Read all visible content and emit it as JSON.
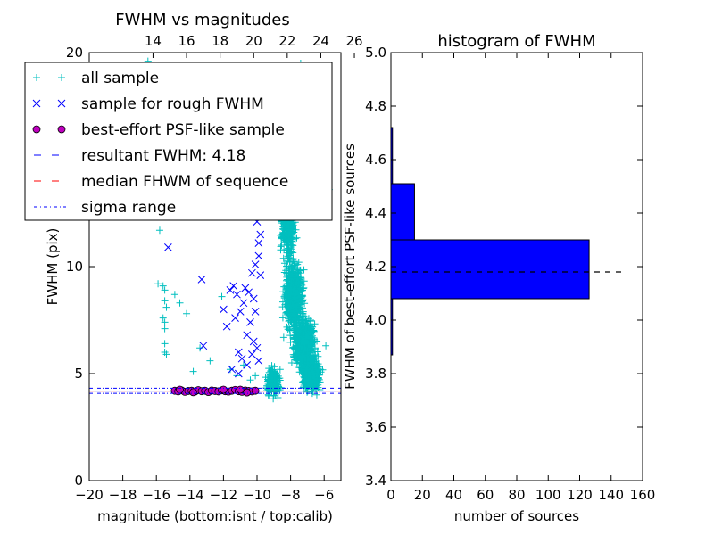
{
  "chart_data": [
    {
      "type": "scatter",
      "title": "FWHM vs magnitudes",
      "xlabel": "magnitude (bottom:isnt / top:calib)",
      "ylabel": "FWHM (pix)",
      "xlim": [
        -20,
        -5
      ],
      "ylim": [
        0,
        20
      ],
      "xticks": [
        -20,
        -18,
        -16,
        -14,
        -12,
        -10,
        -8,
        -6
      ],
      "xtick_labels": [
        "−20",
        "−18",
        "−16",
        "−14",
        "−12",
        "−10",
        "−8",
        "−6"
      ],
      "yticks": [
        0,
        5,
        10,
        15,
        20
      ],
      "ytick_labels": [
        "0",
        "5",
        "10",
        "15",
        "20"
      ],
      "top_axis": {
        "ticks": [
          14,
          16,
          18,
          20,
          22,
          24,
          26
        ],
        "labels": [
          "14",
          "16",
          "18",
          "20",
          "22",
          "24",
          "26"
        ],
        "offset": 30.2
      },
      "legend": {
        "placement": "upper-left",
        "entries": [
          {
            "label": "all sample",
            "marker": "+",
            "color": "#00bfbf"
          },
          {
            "label": "sample for rough FWHM",
            "marker": "x",
            "color": "#0000ff"
          },
          {
            "label": "best-effort PSF-like sample",
            "marker": "o",
            "color": "#bf00bf"
          },
          {
            "label": "resultant FWHM: 4.18",
            "line": "dashed",
            "color": "#0000ff"
          },
          {
            "label": "median FHWM of sequence",
            "line": "dashed",
            "color": "#ff0000"
          },
          {
            "label": "sigma range",
            "line": "dashdot",
            "color": "#0000ff"
          }
        ]
      },
      "reference_lines": {
        "resultant_fwhm": 4.18,
        "median_fwhm": 4.18,
        "sigma_range": [
          4.08,
          4.32
        ]
      },
      "series": [
        {
          "name": "all sample",
          "marker": "+",
          "color": "#00bfbf",
          "points": [
            [
              -16.5,
              19.6
            ],
            [
              -15.6,
              13.0
            ],
            [
              -15.8,
              11.7
            ],
            [
              -15.2,
              12.5
            ],
            [
              -15.9,
              9.2
            ],
            [
              -15.5,
              8.9
            ],
            [
              -15.6,
              9.1
            ],
            [
              -15.5,
              8.4
            ],
            [
              -15.4,
              8.1
            ],
            [
              -15.6,
              7.6
            ],
            [
              -15.5,
              7.4
            ],
            [
              -15.5,
              7.1
            ],
            [
              -15.5,
              6.4
            ],
            [
              -15.5,
              6.0
            ],
            [
              -15.4,
              5.9
            ],
            [
              -14.9,
              8.7
            ],
            [
              -14.6,
              8.3
            ],
            [
              -14.2,
              7.8
            ],
            [
              -13.4,
              6.2
            ],
            [
              -13.8,
              5.1
            ],
            [
              -12.8,
              5.6
            ],
            [
              -12.1,
              8.6
            ],
            [
              -11.6,
              5.2
            ],
            [
              -11.2,
              4.9
            ],
            [
              -10.8,
              5.4
            ],
            [
              -10.4,
              4.7
            ],
            [
              -10.1,
              4.9
            ],
            [
              -8.4,
              17.2
            ],
            [
              -7.4,
              19.5
            ],
            [
              -7.2,
              19.1
            ],
            [
              -6.6,
              19.2
            ],
            [
              -6.4,
              17.6
            ],
            [
              -5.8,
              16.4
            ],
            [
              -5.7,
              13.6
            ],
            [
              -5.9,
              6.3
            ]
          ],
          "clouds": [
            {
              "x_center": -8.2,
              "x_spread": 0.45,
              "y_center": 12.4,
              "y_spread": 2.1,
              "count": 420
            },
            {
              "x_center": -7.8,
              "x_spread": 0.55,
              "y_center": 8.6,
              "y_spread": 1.4,
              "count": 620
            },
            {
              "x_center": -7.2,
              "x_spread": 0.6,
              "y_center": 6.4,
              "y_spread": 1.0,
              "count": 640
            },
            {
              "x_center": -6.8,
              "x_spread": 0.55,
              "y_center": 5.0,
              "y_spread": 0.8,
              "count": 520
            },
            {
              "x_center": -9.0,
              "x_spread": 0.4,
              "y_center": 4.6,
              "y_spread": 0.6,
              "count": 200
            }
          ]
        },
        {
          "name": "sample for rough FWHM",
          "marker": "x",
          "color": "#0000ff",
          "points": [
            [
              -15.3,
              10.9
            ],
            [
              -13.3,
              9.4
            ],
            [
              -13.2,
              6.3
            ],
            [
              -12.0,
              8.0
            ],
            [
              -11.8,
              7.2
            ],
            [
              -11.6,
              8.9
            ],
            [
              -11.4,
              9.1
            ],
            [
              -11.2,
              8.7
            ],
            [
              -11.0,
              7.9
            ],
            [
              -11.3,
              7.6
            ],
            [
              -11.1,
              6.0
            ],
            [
              -10.9,
              5.7
            ],
            [
              -10.7,
              9.0
            ],
            [
              -10.5,
              8.8
            ],
            [
              -10.3,
              9.7
            ],
            [
              -10.2,
              8.5
            ],
            [
              -10.1,
              7.9
            ],
            [
              -10.4,
              7.4
            ],
            [
              -10.6,
              6.8
            ],
            [
              -10.2,
              6.5
            ],
            [
              -10.0,
              6.2
            ],
            [
              -9.9,
              10.5
            ],
            [
              -9.8,
              11.5
            ],
            [
              -10.0,
              12.1
            ],
            [
              -9.9,
              12.6
            ],
            [
              -9.8,
              13.3
            ],
            [
              -9.9,
              11.1
            ],
            [
              -10.1,
              10.1
            ],
            [
              -9.8,
              9.6
            ],
            [
              -10.3,
              5.9
            ],
            [
              -10.6,
              5.4
            ],
            [
              -11.1,
              5.0
            ],
            [
              -11.5,
              5.2
            ],
            [
              -9.9,
              5.6
            ],
            [
              -10.8,
              8.3
            ]
          ]
        },
        {
          "name": "best-effort PSF-like sample",
          "marker": "o",
          "color": "#bf00bf",
          "points": [
            [
              -14.9,
              4.2
            ],
            [
              -14.7,
              4.17
            ],
            [
              -14.5,
              4.22
            ],
            [
              -14.3,
              4.15
            ],
            [
              -14.1,
              4.19
            ],
            [
              -13.9,
              4.2
            ],
            [
              -13.7,
              4.16
            ],
            [
              -13.5,
              4.23
            ],
            [
              -13.3,
              4.18
            ],
            [
              -13.1,
              4.2
            ],
            [
              -12.9,
              4.14
            ],
            [
              -12.7,
              4.21
            ],
            [
              -12.5,
              4.19
            ],
            [
              -12.3,
              4.17
            ],
            [
              -12.1,
              4.22
            ],
            [
              -11.9,
              4.18
            ],
            [
              -11.7,
              4.16
            ],
            [
              -11.5,
              4.2
            ],
            [
              -11.3,
              4.24
            ],
            [
              -11.1,
              4.18
            ],
            [
              -10.9,
              4.15
            ],
            [
              -10.7,
              4.21
            ],
            [
              -10.5,
              4.19
            ],
            [
              -10.3,
              4.17
            ],
            [
              -10.1,
              4.2
            ],
            [
              -11.0,
              4.25
            ],
            [
              -10.6,
              4.12
            ],
            [
              -12.0,
              4.25
            ],
            [
              -13.8,
              4.13
            ],
            [
              -14.6,
              4.25
            ]
          ]
        }
      ]
    },
    {
      "type": "bar",
      "orientation": "horizontal",
      "title": "histogram of FWHM",
      "xlabel": "number of sources",
      "ylabel": "FWHM of best-effort PSF-like sources",
      "xlim": [
        0,
        160
      ],
      "ylim": [
        3.4,
        5.0
      ],
      "xticks": [
        0,
        20,
        40,
        60,
        80,
        100,
        120,
        140,
        160
      ],
      "xtick_labels": [
        "0",
        "20",
        "40",
        "60",
        "80",
        "100",
        "120",
        "140",
        "160"
      ],
      "yticks": [
        3.4,
        3.6,
        3.8,
        4.0,
        4.2,
        4.4,
        4.6,
        4.8,
        5.0
      ],
      "ytick_labels": [
        "3.4",
        "3.6",
        "3.8",
        "4.0",
        "4.2",
        "4.4",
        "4.6",
        "4.8",
        "5.0"
      ],
      "bars": [
        {
          "y0": 3.87,
          "y1": 4.08,
          "count": 1
        },
        {
          "y0": 4.08,
          "y1": 4.3,
          "count": 126
        },
        {
          "y0": 4.3,
          "y1": 4.51,
          "count": 15
        },
        {
          "y0": 4.51,
          "y1": 4.72,
          "count": 1
        }
      ],
      "bar_color": "#0000ff",
      "reference_line": {
        "y": 4.18,
        "x_range": [
          0,
          148
        ],
        "style": "dashed",
        "color": "#000000"
      }
    }
  ]
}
